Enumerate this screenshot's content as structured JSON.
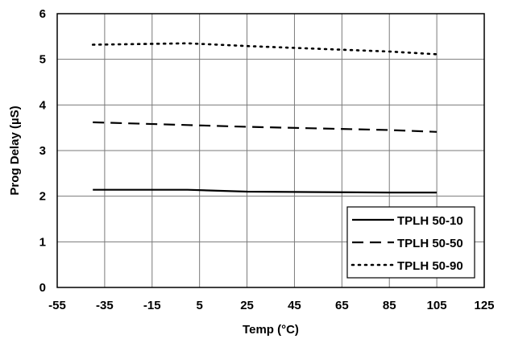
{
  "chart_data": {
    "type": "line",
    "xlabel": "Temp (°C)",
    "ylabel": "Prog Delay (µS)",
    "xlim": [
      -55,
      125
    ],
    "ylim": [
      0,
      6
    ],
    "x_ticks": [
      "-55",
      "-35",
      "-15",
      "5",
      "25",
      "45",
      "65",
      "85",
      "105",
      "125"
    ],
    "y_ticks": [
      "0",
      "1",
      "2",
      "3",
      "4",
      "5",
      "6"
    ],
    "grid": true,
    "legend_position": "bottom-right",
    "x": [
      -40,
      0,
      25,
      85,
      105
    ],
    "series": [
      {
        "name": "TPLH 50-10",
        "style": "solid",
        "values": [
          2.14,
          2.14,
          2.1,
          2.08,
          2.08
        ]
      },
      {
        "name": "TPLH 50-50",
        "style": "dashed",
        "values": [
          3.62,
          3.56,
          3.52,
          3.45,
          3.41
        ]
      },
      {
        "name": "TPLH 50-90",
        "style": "dotted",
        "values": [
          5.32,
          5.35,
          5.29,
          5.17,
          5.11
        ]
      }
    ]
  }
}
